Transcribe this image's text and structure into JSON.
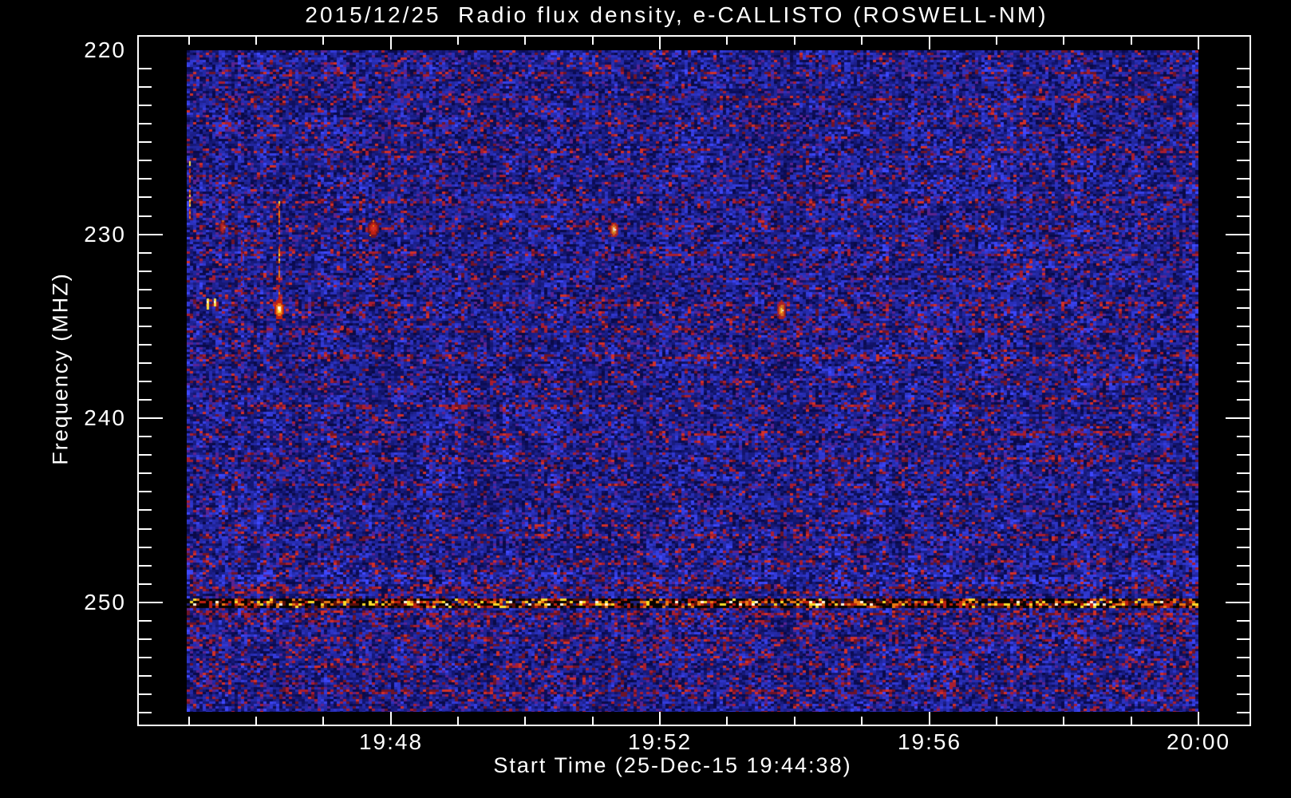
{
  "chart_data": {
    "type": "heatmap",
    "title": "2015/12/25  Radio flux density, e-CALLISTO (ROSWELL-NM)",
    "xlabel": "Start Time (25-Dec-15 19:44:38)",
    "ylabel": "Frequency (MHZ)",
    "start_time": "25-Dec-15 19:44:38",
    "station": "ROSWELL-NM",
    "date": "2015/12/25",
    "x_axis": {
      "tick_labels": [
        "19:48",
        "19:52",
        "19:56",
        "20:00"
      ],
      "tick_minutes": [
        48,
        52,
        56,
        60
      ],
      "minor_step_minutes": 1,
      "first_minor_minute": 45,
      "last_minor_minute": 60,
      "range_minutes": [
        44.26,
        60.78
      ]
    },
    "y_axis": {
      "tick_labels": [
        "220",
        "230",
        "240",
        "250"
      ],
      "tick_values": [
        220,
        230,
        240,
        250
      ],
      "minor_step_mhz": 1,
      "first_minor_mhz": 221,
      "last_minor_mhz": 256,
      "range_mhz": [
        219.2,
        256.8
      ],
      "direction": "increasing-downward"
    },
    "image_extent": {
      "t_start_minute": 44.97,
      "t_end_minute": 60.0,
      "f_start_mhz": 220.0,
      "f_end_mhz": 255.95
    },
    "legend": "none",
    "grid": false,
    "colormap": {
      "background": "#000000",
      "axis": "#ffffff",
      "noise_blue_bright": "#3c46ff",
      "noise_blue": "#2222cc",
      "noise_blue_dark": "#0a0a46",
      "speckle_red": "#a81e30",
      "speckle_bright_red": "#d23028",
      "speckle_dark_red": "#6e1428",
      "speckle_purple": "#5a2390",
      "rfi_black": "#060302",
      "rfi_dark_red": "#5a0f0a",
      "rfi_red": "#c02010",
      "rfi_orange": "#eb7814",
      "rfi_yellow": "#fadc28",
      "rfi_white": "#fff8e0",
      "burst_yellow": "#ffe040"
    },
    "rfi_band": {
      "label": "persistent interference band",
      "center_mhz": 250.05,
      "halfwidth_mhz": 0.32
    },
    "noise": {
      "base_speckle_fraction": 0.09,
      "periodic_row_spacing_mhz": 1.4,
      "red_bands": [
        [
          233.8,
          235.3,
          0.05
        ],
        [
          236.3,
          236.9,
          0.05
        ],
        [
          248.6,
          249.5,
          0.06
        ],
        [
          250.45,
          251.3,
          0.16
        ],
        [
          251.9,
          253.2,
          0.05
        ],
        [
          253.8,
          255.2,
          0.08
        ]
      ],
      "bright_bands": [
        [
          248.2,
          249.0,
          0.25
        ],
        [
          221.4,
          223.0,
          -0.08
        ]
      ]
    },
    "features": [
      {
        "label": "orange-red streak at left edge",
        "time": "19:45:00",
        "t_min": 45.0,
        "f_top_mhz": 225.9,
        "f_bottom_mhz": 229.1,
        "kind": "streak",
        "w": 2
      },
      {
        "label": "small yellow dash",
        "time": "19:45:16",
        "t_min": 45.27,
        "f_top_mhz": 233.5,
        "f_bottom_mhz": 234.1,
        "kind": "dash"
      },
      {
        "label": "small yellow dash",
        "time": "19:45:22",
        "t_min": 45.37,
        "f_top_mhz": 233.5,
        "f_bottom_mhz": 233.9,
        "kind": "dash"
      },
      {
        "label": "red blob",
        "time": "19:45:29",
        "t_min": 45.49,
        "f_top_mhz": 229.3,
        "f_bottom_mhz": 229.9,
        "kind": "burst-red",
        "w": 7
      },
      {
        "label": "faint red streak",
        "time": "19:45:47",
        "t_min": 45.78,
        "f_top_mhz": 229.8,
        "f_bottom_mhz": 233.4,
        "kind": "faint-streak",
        "w": 2
      },
      {
        "label": "thin streak above burst",
        "time": "19:46:20",
        "t_min": 46.33,
        "f_top_mhz": 228.2,
        "f_bottom_mhz": 233.6,
        "kind": "streak",
        "w": 2
      },
      {
        "label": "bright yellow-orange burst",
        "time": "19:46:20",
        "t_min": 46.33,
        "f_top_mhz": 233.6,
        "f_bottom_mhz": 234.5,
        "kind": "burst",
        "w": 10
      },
      {
        "label": "faint red dot",
        "time": "19:47:17",
        "t_min": 47.28,
        "f_top_mhz": 235.0,
        "f_bottom_mhz": 235.2,
        "kind": "dot"
      },
      {
        "label": "red burst",
        "time": "19:47:44",
        "t_min": 47.73,
        "f_top_mhz": 229.3,
        "f_bottom_mhz": 230.0,
        "kind": "burst-red",
        "w": 12
      },
      {
        "label": "orange burst",
        "time": "19:51:19",
        "t_min": 51.31,
        "f_top_mhz": 229.4,
        "f_bottom_mhz": 230.0,
        "kind": "burst",
        "w": 9
      },
      {
        "label": "orange burst",
        "time": "19:53:48",
        "t_min": 53.8,
        "f_top_mhz": 233.7,
        "f_bottom_mhz": 234.5,
        "kind": "burst",
        "w": 9
      },
      {
        "label": "faint red dot",
        "time": "19:56:06",
        "t_min": 56.1,
        "f_top_mhz": 235.8,
        "f_bottom_mhz": 236.0,
        "kind": "dot"
      }
    ]
  }
}
